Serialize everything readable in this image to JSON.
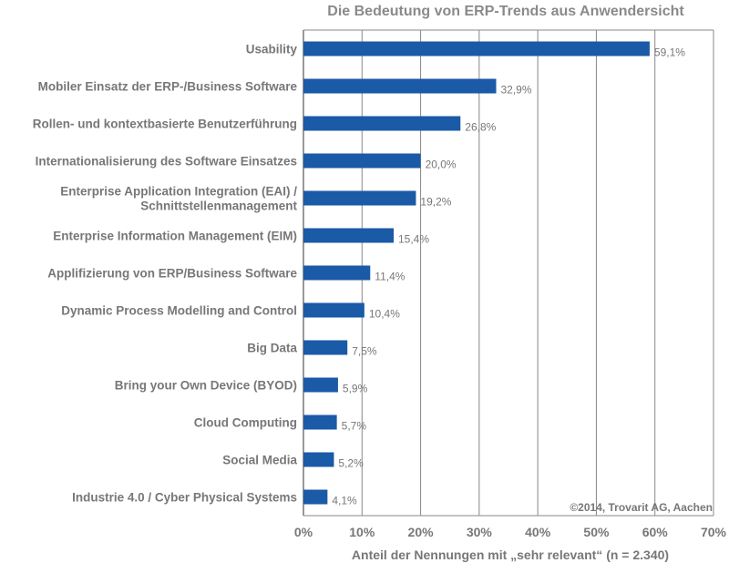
{
  "chart_data": {
    "type": "bar",
    "orientation": "horizontal",
    "title": "Die Bedeutung von ERP-Trends aus Anwendersicht",
    "xlabel": "Anteil der Nennungen mit „sehr relevant“ (n = 2.340)",
    "ylabel": "",
    "xlim": [
      0,
      70
    ],
    "xticks": [
      "0%",
      "10%",
      "20%",
      "30%",
      "40%",
      "50%",
      "60%",
      "70%"
    ],
    "grid": "vertical",
    "bar_color": "#1a5aa6",
    "categories": [
      [
        "Usability"
      ],
      [
        "Mobiler Einsatz der ERP-/Business Software"
      ],
      [
        "Rollen- und kontextbasierte Benutzerführung"
      ],
      [
        "Internationalisierung des Software Einsatzes"
      ],
      [
        "Enterprise Application Integration (EAI) /",
        "Schnittstellenmanagement"
      ],
      [
        "Enterprise Information Management (EIM)"
      ],
      [
        "Applifizierung von ERP/Business Software"
      ],
      [
        "Dynamic Process Modelling and Control"
      ],
      [
        "Big Data"
      ],
      [
        "Bring your Own Device (BYOD)"
      ],
      [
        "Cloud Computing"
      ],
      [
        "Social Media"
      ],
      [
        "Industrie 4.0 / Cyber Physical Systems"
      ]
    ],
    "values": [
      59.1,
      32.9,
      26.8,
      20.0,
      19.2,
      15.4,
      11.4,
      10.4,
      7.5,
      5.9,
      5.7,
      5.2,
      4.1
    ],
    "value_labels": [
      "59,1%",
      "32,9%",
      "26,8%",
      "20,0%",
      "19,2%",
      "15,4%",
      "11,4%",
      "10,4%",
      "7,5%",
      "5,9%",
      "5,7%",
      "5,2%",
      "4,1%"
    ],
    "annotation": "©2014, Trovarit AG, Aachen"
  }
}
